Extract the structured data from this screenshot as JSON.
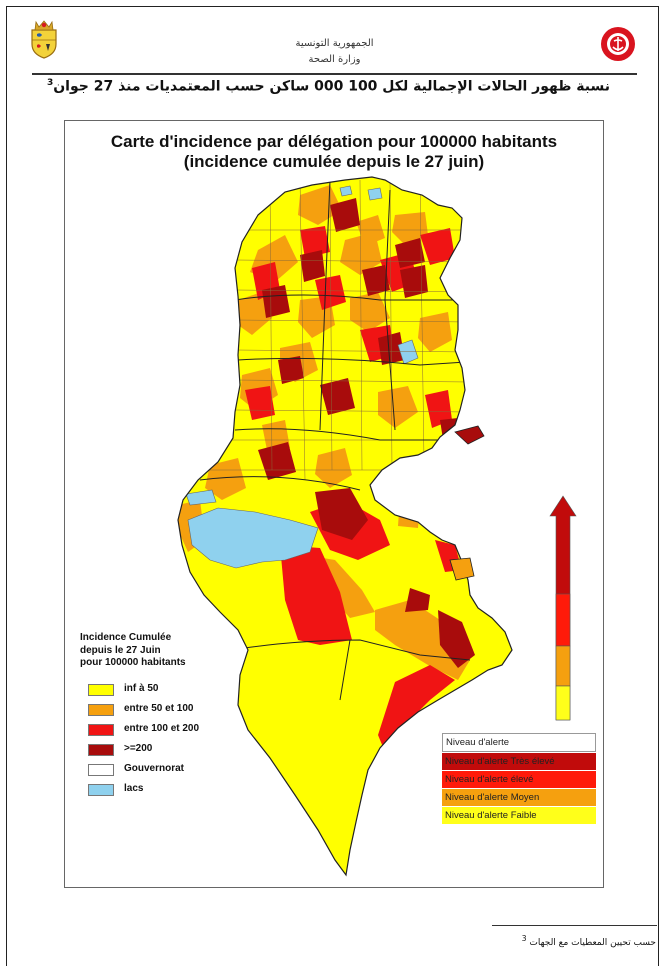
{
  "header": {
    "org_line1": "الجمهورية التونسية",
    "org_line2": "وزارة الصحة",
    "title": "نسبة ظهور الحالات الإجمالية لكل 100 000 ساكن حسب المعتمديات منذ 27 جوان",
    "footnote_mark": "3"
  },
  "map": {
    "title_line1": "Carte d'incidence par délégation pour 100000 habitants",
    "title_line2": "(incidence cumulée depuis le 27 juin)"
  },
  "legend": {
    "title_line1": "Incidence Cumulée",
    "title_line2": "depuis le 27 Juin",
    "title_line3": "pour 100000 habitants",
    "items": [
      {
        "label": "inf à 50",
        "color": "#ffff00"
      },
      {
        "label": "entre 50 et 100",
        "color": "#f5a00f"
      },
      {
        "label": "entre 100 et 200",
        "color": "#f01414"
      },
      {
        "label": ">=200",
        "color": "#a80c0c"
      },
      {
        "label": "Gouvernorat",
        "color": "#ffffff"
      },
      {
        "label": "lacs",
        "color": "#8fd1ee"
      }
    ]
  },
  "alert_scale": {
    "header": "Niveau d'alerte",
    "levels": [
      {
        "label": "Niveau d'alerte Très élevé",
        "color": "#c10b0b"
      },
      {
        "label": "Niveau d'alerte élevé",
        "color": "#ff1a0a"
      },
      {
        "label": "Niveau d'alerte Moyen",
        "color": "#f5a00f"
      },
      {
        "label": "Niveau d'alerte Faible",
        "color": "#ffff1a"
      }
    ]
  },
  "footnote": {
    "text": "حسب تحيين المعطيات مع الجهات"
  }
}
